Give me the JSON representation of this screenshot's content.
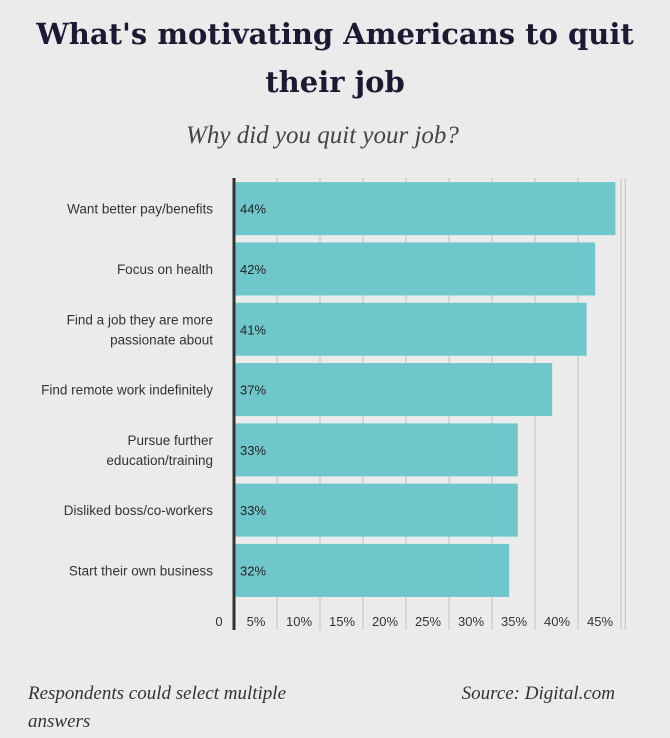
{
  "title": "What's motivating Americans to quit their job",
  "chart_data": {
    "type": "bar",
    "orientation": "horizontal",
    "title": "Why did you quit your job?",
    "categories": [
      "Want better pay/benefits",
      "Focus on health",
      "Find a job they are more passionate about",
      "Find remote work indefinitely",
      "Pursue further education/training",
      "Disliked boss/co-workers",
      "Start their own business"
    ],
    "category_lines": [
      [
        "Want better pay/benefits"
      ],
      [
        "Focus on health"
      ],
      [
        "Find a job they are more",
        "passionate about"
      ],
      [
        "Find remote work indefinitely"
      ],
      [
        "Pursue further",
        "education/training"
      ],
      [
        "Disliked boss/co-workers"
      ],
      [
        "Start their own business"
      ]
    ],
    "values": [
      44,
      42,
      41,
      37,
      33,
      33,
      32
    ],
    "data_labels": [
      "44%",
      "42%",
      "41%",
      "37%",
      "33%",
      "33%",
      "32%"
    ],
    "xticks": [
      0,
      5,
      10,
      15,
      20,
      25,
      30,
      35,
      40,
      45
    ],
    "xtick_labels": [
      "0",
      "5%",
      "10%",
      "15%",
      "20%",
      "25%",
      "30%",
      "35%",
      "40%",
      "45%"
    ],
    "xlim": [
      0,
      45
    ],
    "grid": true,
    "bar_color": "#70c7cb"
  },
  "footnote": "Respondents could select multiple answers",
  "source": "Source: Digital.com"
}
